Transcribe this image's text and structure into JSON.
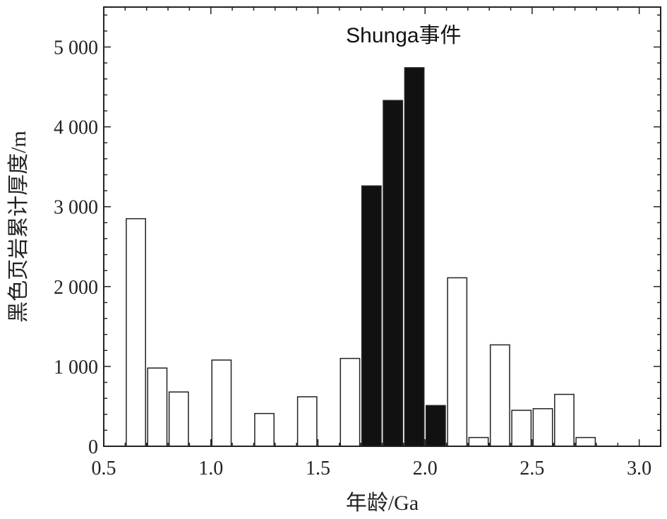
{
  "chart_data": {
    "type": "bar",
    "title": "",
    "xlabel": "年龄/Ga",
    "ylabel": "黑色页岩累计厚度/m",
    "xlim": [
      0.5,
      3.1
    ],
    "ylim": [
      0,
      5500
    ],
    "x_ticks": [
      "0.5",
      "1.0",
      "1.5",
      "2.0",
      "2.5",
      "3.0"
    ],
    "x_tick_values": [
      0.5,
      1.0,
      1.5,
      2.0,
      2.5,
      3.0
    ],
    "y_ticks": [
      "0",
      "1 000",
      "2 000",
      "3 000",
      "4 000",
      "5 000"
    ],
    "y_tick_values": [
      0,
      1000,
      2000,
      3000,
      4000,
      5000
    ],
    "grid": false,
    "annotation": "Shunga事件",
    "bar_width": 0.09,
    "x": [
      0.65,
      0.75,
      0.85,
      1.05,
      1.25,
      1.45,
      1.65,
      1.75,
      1.85,
      1.95,
      2.05,
      2.15,
      2.25,
      2.35,
      2.45,
      2.55,
      2.65,
      2.75
    ],
    "values": [
      2850,
      980,
      680,
      1080,
      410,
      620,
      1100,
      3260,
      4330,
      4740,
      510,
      2110,
      110,
      1270,
      450,
      470,
      650,
      110
    ],
    "highlighted": [
      false,
      false,
      false,
      false,
      false,
      false,
      false,
      true,
      true,
      true,
      true,
      false,
      false,
      false,
      false,
      false,
      false,
      false
    ],
    "colors": {
      "highlight": "#111111",
      "normal": "#ffffff",
      "stroke": "#222222"
    }
  }
}
